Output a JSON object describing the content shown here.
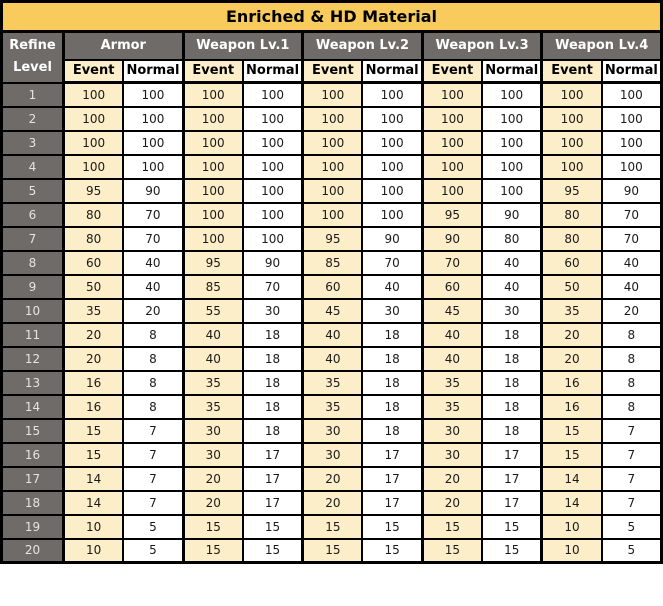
{
  "title": "Enriched & HD Material",
  "header": {
    "refine_line1": "Refine",
    "refine_line2": "Level",
    "groups": [
      {
        "label": "Armor"
      },
      {
        "label": "Weapon Lv.1"
      },
      {
        "label": "Weapon Lv.2"
      },
      {
        "label": "Weapon Lv.3"
      },
      {
        "label": "Weapon Lv.4"
      }
    ],
    "sub": {
      "event": "Event",
      "normal": "Normal"
    }
  },
  "colors": {
    "title_bg": "#F9CB5D",
    "header_bg": "#6F6B68",
    "header_text": "#FFFFFF",
    "level_text": "#E6E4E1",
    "event_bg": "#FCEEC9",
    "normal_bg": "#FFFFFF",
    "border": "#000000",
    "cell_text": "#1C1A18"
  },
  "chart_data": {
    "type": "table",
    "title": "Enriched & HD Material",
    "row_header": "Refine Level",
    "column_groups": [
      "Armor",
      "Weapon Lv.1",
      "Weapon Lv.2",
      "Weapon Lv.3",
      "Weapon Lv.4"
    ],
    "sub_columns": [
      "Event",
      "Normal"
    ],
    "rows": [
      {
        "level": 1,
        "values": [
          100,
          100,
          100,
          100,
          100,
          100,
          100,
          100,
          100,
          100
        ]
      },
      {
        "level": 2,
        "values": [
          100,
          100,
          100,
          100,
          100,
          100,
          100,
          100,
          100,
          100
        ]
      },
      {
        "level": 3,
        "values": [
          100,
          100,
          100,
          100,
          100,
          100,
          100,
          100,
          100,
          100
        ]
      },
      {
        "level": 4,
        "values": [
          100,
          100,
          100,
          100,
          100,
          100,
          100,
          100,
          100,
          100
        ]
      },
      {
        "level": 5,
        "values": [
          95,
          90,
          100,
          100,
          100,
          100,
          100,
          100,
          95,
          90
        ]
      },
      {
        "level": 6,
        "values": [
          80,
          70,
          100,
          100,
          100,
          100,
          95,
          90,
          80,
          70
        ]
      },
      {
        "level": 7,
        "values": [
          80,
          70,
          100,
          100,
          95,
          90,
          90,
          80,
          80,
          70
        ]
      },
      {
        "level": 8,
        "values": [
          60,
          40,
          95,
          90,
          85,
          70,
          70,
          40,
          60,
          40
        ]
      },
      {
        "level": 9,
        "values": [
          50,
          40,
          85,
          70,
          60,
          40,
          60,
          40,
          50,
          40
        ]
      },
      {
        "level": 10,
        "values": [
          35,
          20,
          55,
          30,
          45,
          30,
          45,
          30,
          35,
          20
        ]
      },
      {
        "level": 11,
        "values": [
          20,
          8,
          40,
          18,
          40,
          18,
          40,
          18,
          20,
          8
        ]
      },
      {
        "level": 12,
        "values": [
          20,
          8,
          40,
          18,
          40,
          18,
          40,
          18,
          20,
          8
        ]
      },
      {
        "level": 13,
        "values": [
          16,
          8,
          35,
          18,
          35,
          18,
          35,
          18,
          16,
          8
        ]
      },
      {
        "level": 14,
        "values": [
          16,
          8,
          35,
          18,
          35,
          18,
          35,
          18,
          16,
          8
        ]
      },
      {
        "level": 15,
        "values": [
          15,
          7,
          30,
          18,
          30,
          18,
          30,
          18,
          15,
          7
        ]
      },
      {
        "level": 16,
        "values": [
          15,
          7,
          30,
          17,
          30,
          17,
          30,
          17,
          15,
          7
        ]
      },
      {
        "level": 17,
        "values": [
          14,
          7,
          20,
          17,
          20,
          17,
          20,
          17,
          14,
          7
        ]
      },
      {
        "level": 18,
        "values": [
          14,
          7,
          20,
          17,
          20,
          17,
          20,
          17,
          14,
          7
        ]
      },
      {
        "level": 19,
        "values": [
          10,
          5,
          15,
          15,
          15,
          15,
          15,
          15,
          10,
          5
        ]
      },
      {
        "level": 20,
        "values": [
          10,
          5,
          15,
          15,
          15,
          15,
          15,
          15,
          10,
          5
        ]
      }
    ]
  }
}
